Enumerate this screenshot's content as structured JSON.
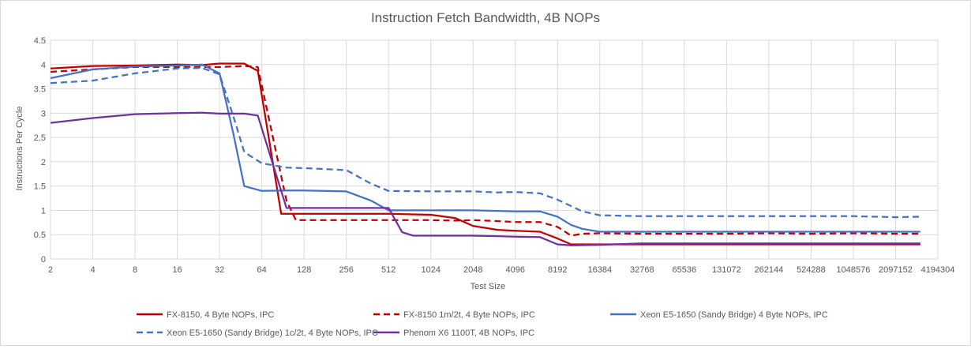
{
  "chart_data": {
    "type": "line",
    "title": "Instruction Fetch Bandwidth, 4B NOPs",
    "xlabel": "Test Size",
    "ylabel": "Instructions Per Cycle",
    "xscale": "log2",
    "x_ticks": [
      "2",
      "4",
      "8",
      "16",
      "32",
      "64",
      "128",
      "256",
      "512",
      "1024",
      "2048",
      "4096",
      "8192",
      "16384",
      "32768",
      "65536",
      "131072",
      "262144",
      "524288",
      "1048576",
      "2097152",
      "4194304"
    ],
    "xlim": [
      2,
      4194304
    ],
    "ylim": [
      0,
      4.5
    ],
    "y_ticks": [
      "0",
      "0.5",
      "1",
      "1.5",
      "2",
      "2.5",
      "3",
      "3.5",
      "4",
      "4.5"
    ],
    "grid": "vertical-and-horizontal",
    "legend_position": "bottom",
    "series": [
      {
        "name": "FX-8150, 4 Byte NOPs, IPC",
        "color": "#c00000",
        "dash": "solid",
        "x": [
          2,
          4,
          8,
          16,
          24,
          32,
          48,
          60,
          88,
          96,
          128,
          256,
          512,
          1024,
          1536,
          2048,
          3072,
          4096,
          6144,
          8192,
          10240,
          12288,
          16384,
          32768,
          65536,
          131072,
          262144,
          524288,
          1048576,
          2097152,
          3145728
        ],
        "y": [
          3.92,
          3.97,
          3.98,
          4.0,
          3.99,
          4.02,
          4.02,
          3.87,
          0.93,
          0.93,
          0.93,
          0.93,
          0.93,
          0.91,
          0.84,
          0.68,
          0.6,
          0.58,
          0.56,
          0.42,
          0.3,
          0.3,
          0.3,
          0.3,
          0.3,
          0.3,
          0.3,
          0.3,
          0.3,
          0.3,
          0.3
        ]
      },
      {
        "name": "FX-8150 1m/2t, 4 Byte NOPs, IPC",
        "color": "#c00000",
        "dash": "dashed",
        "x": [
          2,
          4,
          8,
          16,
          24,
          32,
          48,
          60,
          96,
          112,
          128,
          256,
          512,
          1024,
          1536,
          2048,
          3072,
          4096,
          6144,
          8192,
          10240,
          12288,
          16384,
          32768,
          65536,
          131072,
          262144,
          524288,
          1048576,
          2097152,
          3145728
        ],
        "y": [
          3.85,
          3.9,
          3.95,
          3.95,
          3.95,
          3.95,
          3.97,
          3.95,
          1.2,
          0.8,
          0.8,
          0.8,
          0.8,
          0.8,
          0.79,
          0.8,
          0.78,
          0.76,
          0.76,
          0.66,
          0.48,
          0.52,
          0.53,
          0.52,
          0.52,
          0.52,
          0.53,
          0.52,
          0.53,
          0.52,
          0.52
        ]
      },
      {
        "name": "Xeon E5-1650 (Sandy Bridge) 4 Byte NOPs, IPC",
        "color": "#4472c4",
        "dash": "solid",
        "x": [
          2,
          4,
          8,
          16,
          24,
          32,
          40,
          48,
          64,
          96,
          128,
          256,
          384,
          512,
          1024,
          2048,
          4096,
          6144,
          8192,
          10240,
          12288,
          16384,
          32768,
          65536,
          131072,
          262144,
          524288,
          1048576,
          2097152,
          3145728
        ],
        "y": [
          3.72,
          3.9,
          3.96,
          3.98,
          4.0,
          3.82,
          2.6,
          1.5,
          1.4,
          1.41,
          1.41,
          1.39,
          1.2,
          1.0,
          1.0,
          1.0,
          0.98,
          0.98,
          0.87,
          0.7,
          0.62,
          0.56,
          0.56,
          0.56,
          0.56,
          0.56,
          0.56,
          0.56,
          0.56,
          0.56
        ]
      },
      {
        "name": "Xeon E5-1650 (Sandy Bridge) 1c/2t, 4 Byte NOPs, IPC",
        "color": "#4472c4",
        "dash": "dashed",
        "x": [
          2,
          4,
          8,
          16,
          24,
          32,
          40,
          48,
          64,
          96,
          128,
          256,
          384,
          512,
          1024,
          2048,
          3072,
          4096,
          6144,
          8192,
          12288,
          16384,
          32768,
          65536,
          131072,
          262144,
          524288,
          1048576,
          2097152,
          3145728
        ],
        "y": [
          3.62,
          3.67,
          3.82,
          3.92,
          3.93,
          3.8,
          2.95,
          2.2,
          1.97,
          1.88,
          1.87,
          1.83,
          1.55,
          1.4,
          1.39,
          1.39,
          1.37,
          1.38,
          1.35,
          1.22,
          0.98,
          0.9,
          0.88,
          0.88,
          0.88,
          0.88,
          0.88,
          0.88,
          0.86,
          0.87
        ]
      },
      {
        "name": "Phenom X6 1100T, 4B NOPs, IPC",
        "color": "#7030a0",
        "dash": "solid",
        "x": [
          2,
          4,
          8,
          16,
          24,
          32,
          48,
          60,
          96,
          128,
          256,
          512,
          640,
          768,
          1024,
          2048,
          3072,
          4096,
          6144,
          8192,
          10240,
          16384,
          32768,
          65536,
          131072,
          262144,
          524288,
          1048576,
          2097152,
          3145728
        ],
        "y": [
          2.8,
          2.9,
          2.98,
          3.0,
          3.01,
          2.99,
          2.99,
          2.95,
          1.05,
          1.05,
          1.05,
          1.05,
          0.55,
          0.48,
          0.48,
          0.48,
          0.47,
          0.46,
          0.45,
          0.3,
          0.28,
          0.29,
          0.32,
          0.32,
          0.32,
          0.32,
          0.32,
          0.32,
          0.32,
          0.32
        ]
      }
    ]
  }
}
